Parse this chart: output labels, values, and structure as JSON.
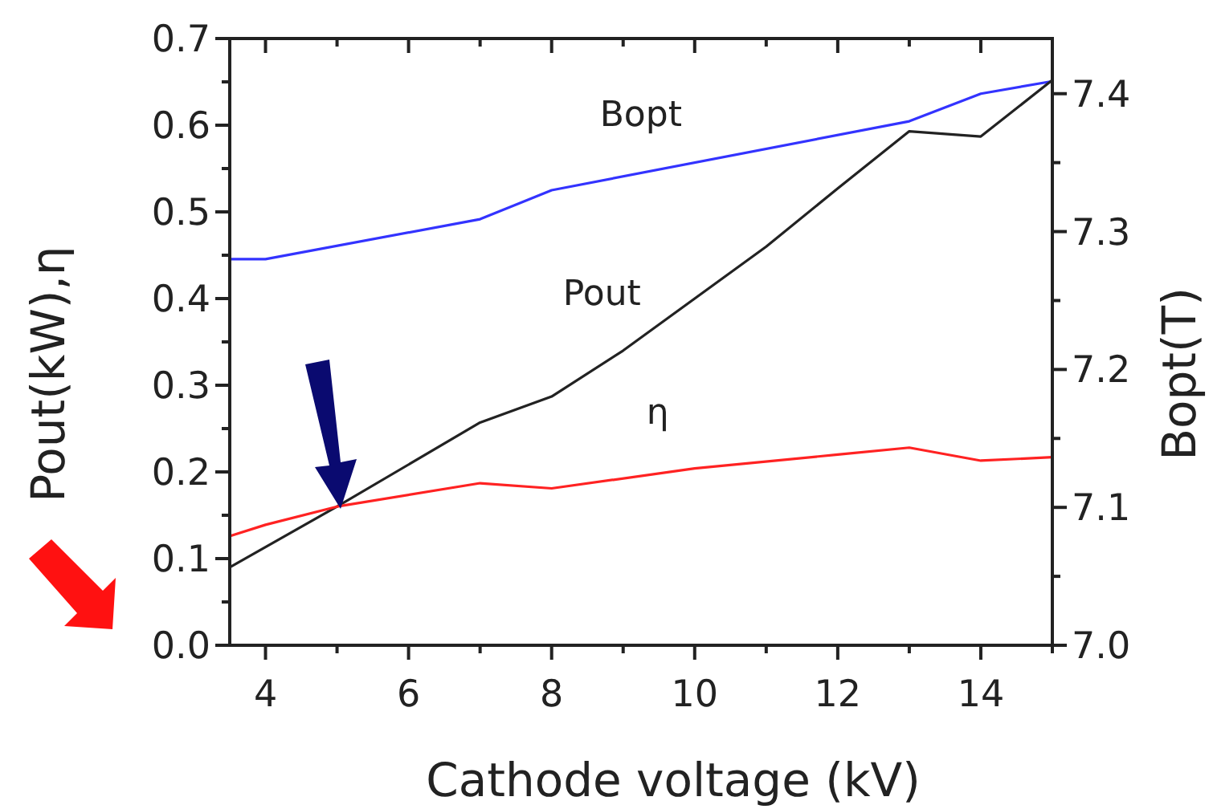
{
  "chart_data": {
    "type": "line",
    "xlabel": "Cathode voltage (kV)",
    "ylabel": "Pout(kW),η",
    "y2label": "Bopt(T)",
    "xlim": [
      3.5,
      15
    ],
    "xticks": [
      4,
      {
        "value": 5,
        "label": null
      },
      6,
      {
        "value": 7,
        "label": null
      },
      8,
      {
        "value": 9,
        "label": null
      },
      10,
      {
        "value": 11,
        "label": null
      },
      12,
      {
        "value": 13,
        "label": null
      },
      14,
      {
        "value": 15,
        "label": null
      }
    ],
    "ylim": [
      0,
      0.7
    ],
    "yticks": [
      {
        "value": 0,
        "label": "0.0"
      },
      {
        "value": 0.05,
        "label": null
      },
      0.1,
      {
        "value": 0.15,
        "label": null
      },
      0.2,
      {
        "value": 0.25,
        "label": null
      },
      0.3,
      {
        "value": 0.35,
        "label": null
      },
      0.4,
      {
        "value": 0.45,
        "label": null
      },
      0.5,
      {
        "value": 0.55,
        "label": null
      },
      0.6,
      {
        "value": 0.65,
        "label": null
      },
      0.7
    ],
    "y2lim": [
      7.0,
      7.44
    ],
    "y2ticks": [
      {
        "value": 7,
        "label": "7.0"
      },
      {
        "value": 7.05,
        "label": null
      },
      7.1,
      {
        "value": 7.15,
        "label": null
      },
      7.2,
      {
        "value": 7.25,
        "label": null
      },
      7.3,
      {
        "value": 7.35,
        "label": null
      },
      7.4
    ],
    "grid": false,
    "marker": "none",
    "line_style": "solid",
    "series": [
      {
        "name": "Bopt",
        "color": "#3333ff",
        "axis": "y2",
        "x": [
          3.5,
          4,
          7,
          8,
          13,
          14,
          15
        ],
        "values": [
          7.28,
          7.28,
          7.309,
          7.33,
          7.38,
          7.4,
          7.409
        ]
      },
      {
        "name": "Pout",
        "color": "#222222",
        "x": [
          3.5,
          5,
          7,
          8,
          9,
          10,
          11,
          12,
          13,
          14,
          15
        ],
        "values": [
          0.09,
          0.16,
          0.257,
          0.287,
          0.34,
          0.4,
          0.46,
          0.527,
          0.593,
          0.587,
          0.652
        ]
      },
      {
        "name": "η",
        "color": "#ff2222",
        "x": [
          3.5,
          4,
          5,
          7,
          8,
          10,
          12,
          13,
          14,
          15
        ],
        "values": [
          0.126,
          0.139,
          0.16,
          0.187,
          0.181,
          0.204,
          0.22,
          0.228,
          0.213,
          0.217
        ]
      }
    ]
  }
}
